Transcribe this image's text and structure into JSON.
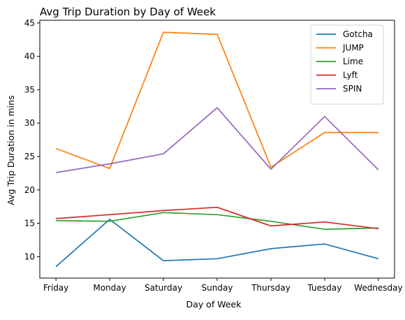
{
  "chart_data": {
    "type": "line",
    "title": "Avg Trip Duration by Day of Week",
    "xlabel": "Day of Week",
    "ylabel": "Avg Trip Duration in mins",
    "categories": [
      "Friday",
      "Monday",
      "Saturday",
      "Sunday",
      "Thursday",
      "Tuesday",
      "Wednesday"
    ],
    "yticks": [
      10,
      15,
      20,
      25,
      30,
      35,
      40,
      45
    ],
    "ylim": [
      6.8,
      45.4
    ],
    "grid": false,
    "legend_position": "top-right",
    "series": [
      {
        "name": "Gotcha",
        "color": "#1f77b4",
        "values": [
          8.5,
          15.6,
          9.4,
          9.7,
          11.2,
          11.9,
          9.7
        ]
      },
      {
        "name": "JUMP",
        "color": "#ff7f0e",
        "values": [
          26.2,
          23.2,
          43.6,
          43.3,
          23.4,
          28.6,
          28.6
        ]
      },
      {
        "name": "Lime",
        "color": "#2ca02c",
        "values": [
          15.4,
          15.3,
          16.6,
          16.3,
          15.3,
          14.1,
          14.3
        ]
      },
      {
        "name": "Lyft",
        "color": "#d62728",
        "values": [
          15.7,
          16.3,
          16.9,
          17.4,
          14.6,
          15.2,
          14.2
        ]
      },
      {
        "name": "SPIN",
        "color": "#9467bd",
        "values": [
          22.6,
          23.9,
          25.4,
          32.3,
          23.1,
          31.0,
          23.0
        ]
      }
    ]
  }
}
